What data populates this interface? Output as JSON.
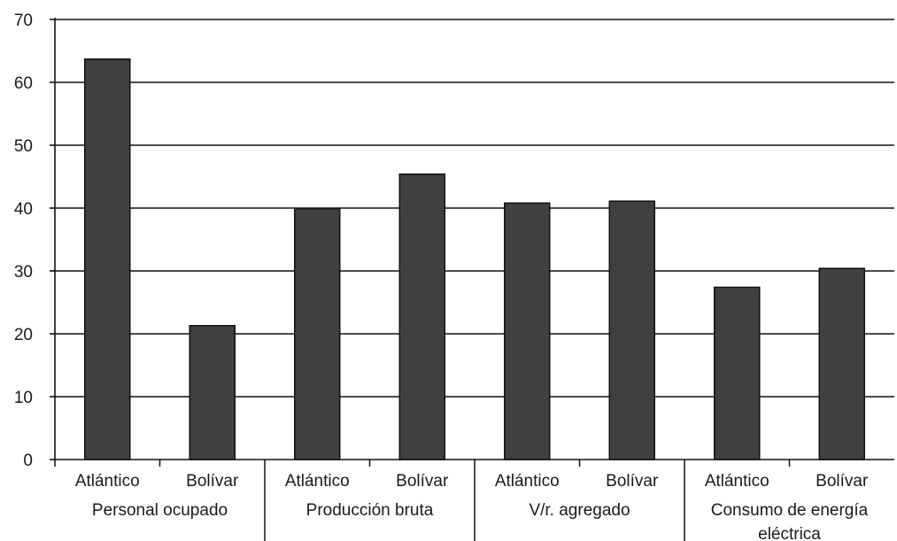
{
  "chart_data": {
    "type": "bar",
    "title": "",
    "xlabel": "",
    "ylabel": "",
    "ylim": [
      0,
      70
    ],
    "yticks": [
      0,
      10,
      20,
      30,
      40,
      50,
      60,
      70
    ],
    "grid": true,
    "legend": "none",
    "bar_color": "#404040",
    "groups": [
      {
        "label_lines": [
          "Personal ocupado"
        ],
        "bars": [
          {
            "label": "Atlántico",
            "value": 63.7
          },
          {
            "label": "Bolívar",
            "value": 21.3
          }
        ]
      },
      {
        "label_lines": [
          "Producción bruta"
        ],
        "bars": [
          {
            "label": "Atlántico",
            "value": 39.9
          },
          {
            "label": "Bolívar",
            "value": 45.4
          }
        ]
      },
      {
        "label_lines": [
          "V/r. agregado"
        ],
        "bars": [
          {
            "label": "Atlántico",
            "value": 40.8
          },
          {
            "label": "Bolívar",
            "value": 41.1
          }
        ]
      },
      {
        "label_lines": [
          "Consumo de energía",
          "eléctrica"
        ],
        "bars": [
          {
            "label": "Atlántico",
            "value": 27.4
          },
          {
            "label": "Bolívar",
            "value": 30.4
          }
        ]
      }
    ]
  }
}
